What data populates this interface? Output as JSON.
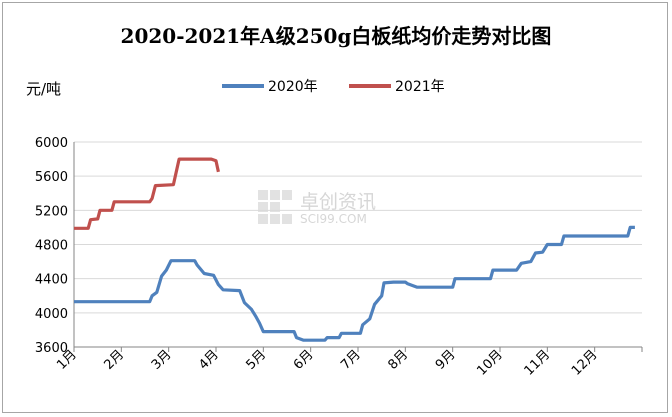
{
  "chart_data": {
    "type": "line",
    "title": "2020-2021年A级250g白板纸均价走势对比图",
    "ylabel": "元/吨",
    "xlabel": "",
    "ylim": [
      3600,
      6000
    ],
    "yticks": [
      3600,
      4000,
      4400,
      4800,
      5200,
      5600,
      6000
    ],
    "categories": [
      "1月",
      "2月",
      "3月",
      "4月",
      "5月",
      "6月",
      "7月",
      "8月",
      "9月",
      "10月",
      "11月",
      "12月"
    ],
    "grid": true,
    "legend": "top-center",
    "watermark": {
      "cn": "卓创资讯",
      "en": "SCI99.COM"
    },
    "series": [
      {
        "name": "2020年",
        "color": "#4f81bd",
        "points": [
          [
            1,
            4130
          ],
          [
            1.8,
            4130
          ],
          [
            2.6,
            4130
          ],
          [
            2.65,
            4200
          ],
          [
            2.75,
            4240
          ],
          [
            2.85,
            4430
          ],
          [
            2.95,
            4500
          ],
          [
            3.05,
            4610
          ],
          [
            3.2,
            4610
          ],
          [
            3.55,
            4610
          ],
          [
            3.6,
            4560
          ],
          [
            3.75,
            4460
          ],
          [
            3.95,
            4440
          ],
          [
            4.05,
            4330
          ],
          [
            4.15,
            4270
          ],
          [
            4.5,
            4260
          ],
          [
            4.6,
            4120
          ],
          [
            4.75,
            4040
          ],
          [
            4.85,
            3950
          ],
          [
            4.92,
            3880
          ],
          [
            5.0,
            3780
          ],
          [
            5.3,
            3780
          ],
          [
            5.65,
            3780
          ],
          [
            5.7,
            3710
          ],
          [
            5.85,
            3680
          ],
          [
            6.3,
            3680
          ],
          [
            6.35,
            3710
          ],
          [
            6.6,
            3710
          ],
          [
            6.65,
            3760
          ],
          [
            7.05,
            3760
          ],
          [
            7.1,
            3860
          ],
          [
            7.25,
            3930
          ],
          [
            7.35,
            4100
          ],
          [
            7.5,
            4200
          ],
          [
            7.55,
            4350
          ],
          [
            7.75,
            4360
          ],
          [
            8.0,
            4360
          ],
          [
            8.05,
            4340
          ],
          [
            8.15,
            4320
          ],
          [
            8.25,
            4300
          ],
          [
            9.0,
            4300
          ],
          [
            9.05,
            4400
          ],
          [
            9.25,
            4400
          ],
          [
            9.8,
            4400
          ],
          [
            9.85,
            4500
          ],
          [
            10.35,
            4500
          ],
          [
            10.45,
            4580
          ],
          [
            10.65,
            4600
          ],
          [
            10.75,
            4700
          ],
          [
            10.9,
            4710
          ],
          [
            11.0,
            4800
          ],
          [
            11.3,
            4800
          ],
          [
            11.35,
            4900
          ],
          [
            11.8,
            4900
          ],
          [
            12.7,
            4900
          ],
          [
            12.75,
            5000
          ],
          [
            12.85,
            5000
          ]
        ]
      },
      {
        "name": "2021年",
        "color": "#c0504d",
        "points": [
          [
            1,
            4990
          ],
          [
            1.3,
            4990
          ],
          [
            1.35,
            5090
          ],
          [
            1.5,
            5100
          ],
          [
            1.55,
            5200
          ],
          [
            1.8,
            5200
          ],
          [
            1.85,
            5300
          ],
          [
            2.3,
            5300
          ],
          [
            2.6,
            5300
          ],
          [
            2.65,
            5340
          ],
          [
            2.72,
            5490
          ],
          [
            3.1,
            5500
          ],
          [
            3.22,
            5800
          ],
          [
            3.5,
            5800
          ],
          [
            3.9,
            5800
          ],
          [
            4.0,
            5780
          ],
          [
            4.05,
            5650
          ]
        ]
      }
    ]
  }
}
